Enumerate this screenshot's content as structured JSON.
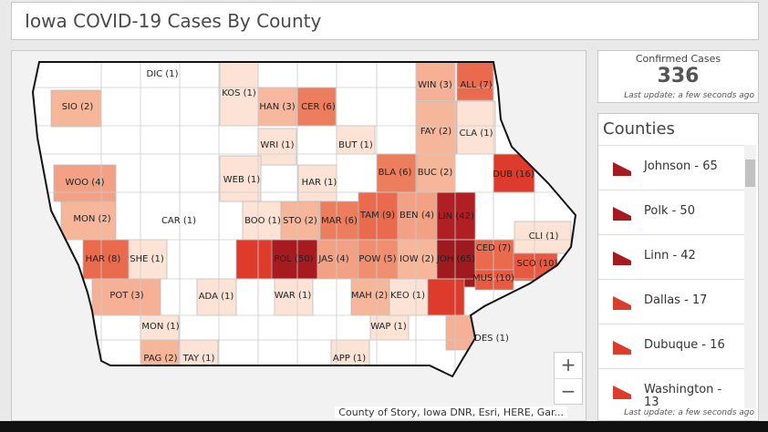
{
  "header": {
    "title": "Iowa COVID-19 Cases By County"
  },
  "map": {
    "county_labels": [
      "DIC (1)",
      "SIO (2)",
      "KOS (1)",
      "HAN (3)",
      "CER (6)",
      "WIN (3)",
      "ALL (7)",
      "FAY (2)",
      "CLA (1)",
      "WRI (1)",
      "BUT (1)",
      "WEB (1)",
      "HAR (1)",
      "BLA (6)",
      "BUC (2)",
      "DUB (16)",
      "WOO (4)",
      "MON (2)",
      "CAR (1)",
      "BOO (1)",
      "STO (2)",
      "MAR (6)",
      "TAM (9)",
      "BEN (4)",
      "LIN (42)",
      "CLI (1)",
      "HAR (8)",
      "SHE (1)",
      "POL (50)",
      "JAS (4)",
      "POW (5)",
      "IOW (2)",
      "JOH (65)",
      "CED (7)",
      "SCO (10)",
      "MUS (10)",
      "POT (3)",
      "ADA (1)",
      "WAR (1)",
      "MAH (2)",
      "KEO (1)",
      "MON (1)",
      "WAP (1)",
      "DES (1)",
      "PAG (2)",
      "TAY (1)",
      "APP (1)"
    ],
    "attribution": "County of Story, Iowa DNR, Esri, HERE, Gar...",
    "zoom_in": "+",
    "zoom_out": "−"
  },
  "summary": {
    "label": "Confirmed Cases",
    "value": "336",
    "update": "Last update: a few seconds ago"
  },
  "counties_panel": {
    "title": "Counties",
    "items": [
      "Johnson - 65",
      "Polk - 50",
      "Linn - 42",
      "Dallas - 17",
      "Dubuque - 16",
      "Washington - 13"
    ],
    "update": "Last update: a few seconds ago"
  }
}
